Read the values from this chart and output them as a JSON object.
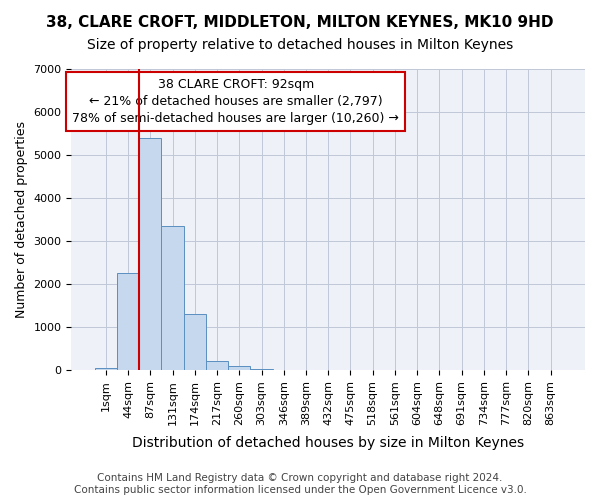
{
  "title": "38, CLARE CROFT, MIDDLETON, MILTON KEYNES, MK10 9HD",
  "subtitle": "Size of property relative to detached houses in Milton Keynes",
  "xlabel": "Distribution of detached houses by size in Milton Keynes",
  "ylabel": "Number of detached properties",
  "footer_line1": "Contains HM Land Registry data © Crown copyright and database right 2024.",
  "footer_line2": "Contains public sector information licensed under the Open Government Licence v3.0.",
  "bin_labels": [
    "1sqm",
    "44sqm",
    "87sqm",
    "131sqm",
    "174sqm",
    "217sqm",
    "260sqm",
    "303sqm",
    "346sqm",
    "389sqm",
    "432sqm",
    "475sqm",
    "518sqm",
    "561sqm",
    "604sqm",
    "648sqm",
    "691sqm",
    "734sqm",
    "777sqm",
    "820sqm",
    "863sqm"
  ],
  "bar_values": [
    50,
    2250,
    5400,
    3350,
    1300,
    200,
    100,
    30,
    0,
    0,
    0,
    0,
    0,
    0,
    0,
    0,
    0,
    0,
    0,
    0,
    0
  ],
  "bar_color": "#c5d8ed",
  "bar_edgecolor": "#5a8fc0",
  "grid_color": "#c0c8d8",
  "background_color": "#eef2f8",
  "annotation_line1": "38 CLARE CROFT: 92sqm",
  "annotation_line2": "← 21% of detached houses are smaller (2,797)",
  "annotation_line3": "78% of semi-detached houses are larger (10,260) →",
  "annotation_box_color": "#ffffff",
  "annotation_box_edgecolor": "#cc0000",
  "vline_x_idx": 2,
  "vline_color": "#cc0000",
  "ylim": [
    0,
    7000
  ],
  "yticks": [
    0,
    1000,
    2000,
    3000,
    4000,
    5000,
    6000,
    7000
  ],
  "title_fontsize": 11,
  "subtitle_fontsize": 10,
  "xlabel_fontsize": 10,
  "ylabel_fontsize": 9,
  "tick_fontsize": 8,
  "annotation_fontsize": 9,
  "footer_fontsize": 7.5
}
